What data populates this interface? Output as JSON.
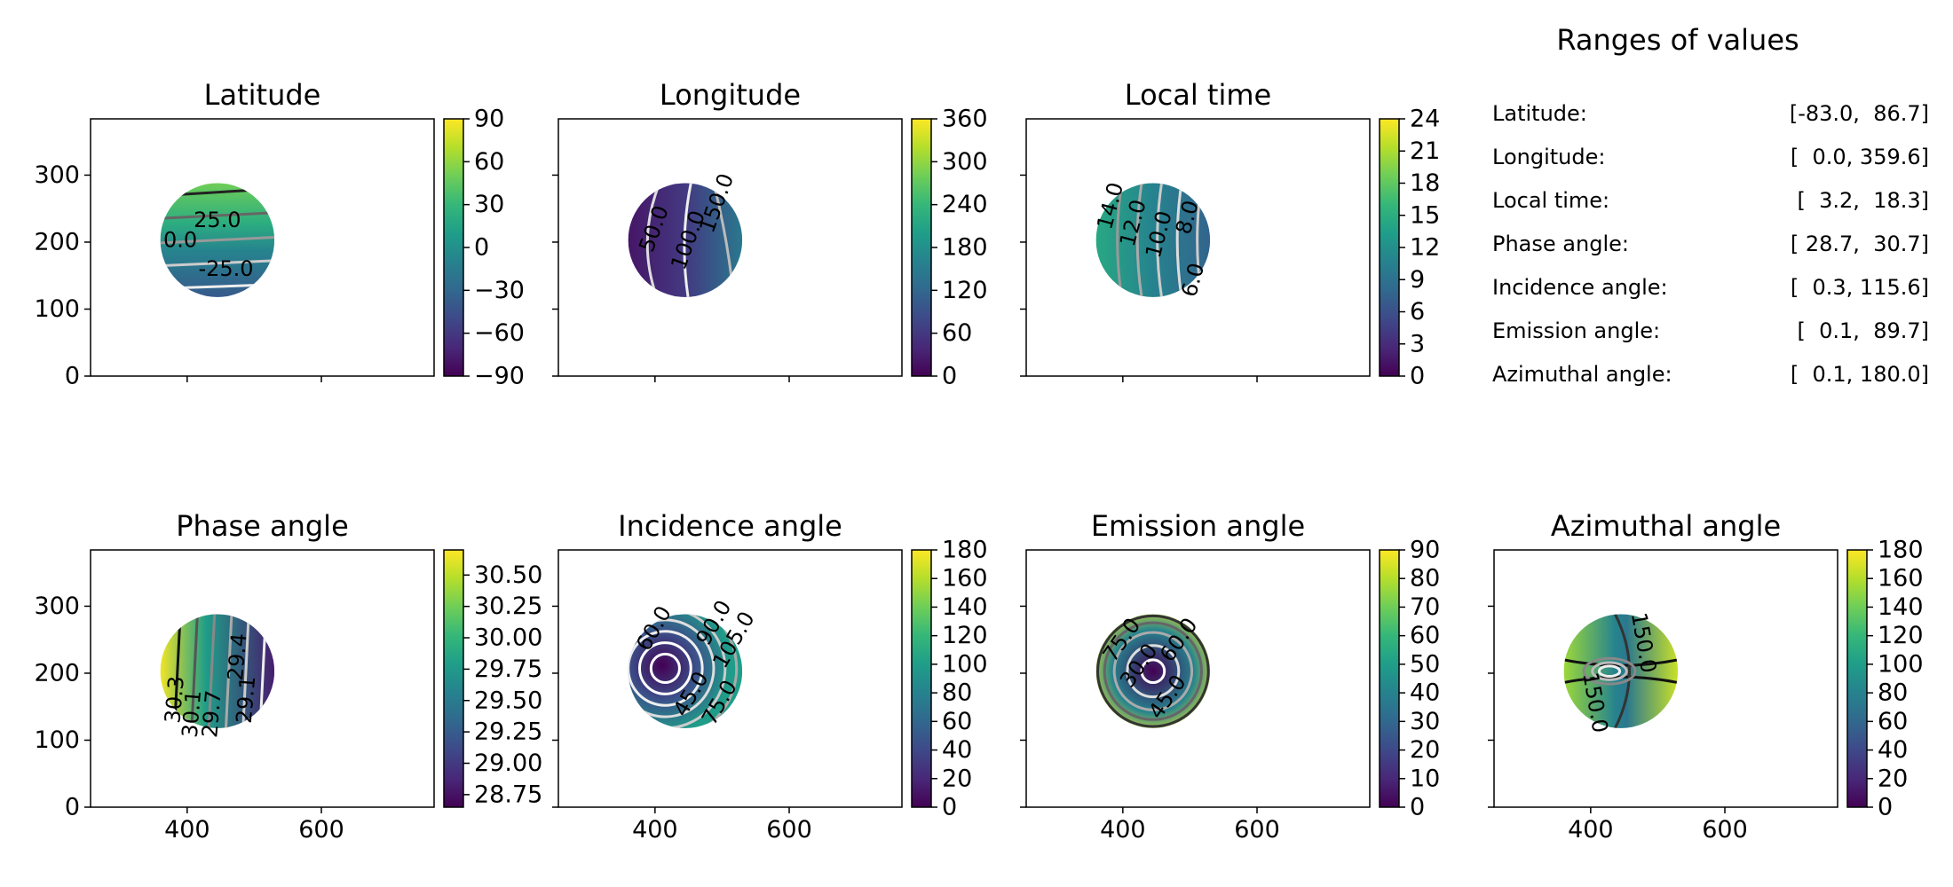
{
  "ranges_panel": {
    "title": "Ranges of values",
    "rows": [
      {
        "name": "Latitude:",
        "range": "[-83.0,  86.7]"
      },
      {
        "name": "Longitude:",
        "range": "[  0.0, 359.6]"
      },
      {
        "name": "Local time:",
        "range": "[  3.2,  18.3]"
      },
      {
        "name": "Phase angle:",
        "range": "[ 28.7,  30.7]"
      },
      {
        "name": "Incidence angle:",
        "range": "[  0.3, 115.6]"
      },
      {
        "name": "Emission angle:",
        "range": "[  0.1,  89.7]"
      },
      {
        "name": "Azimuthal angle:",
        "range": "[  0.1, 180.0]"
      }
    ]
  },
  "chart_data": [
    {
      "type": "heatmap",
      "title": "Latitude",
      "xlim": [
        256,
        768
      ],
      "ylim": [
        0,
        384
      ],
      "xticks": [
        "400",
        "600"
      ],
      "yticks": [
        "0",
        "100",
        "200",
        "300"
      ],
      "show_x_labels": false,
      "show_y_labels": true,
      "colormap": "viridis",
      "colorbar": {
        "min": -90,
        "max": 90,
        "ticks": [
          "90",
          "60",
          "30",
          "0",
          "−30",
          "−60",
          "−90"
        ],
        "tick_values": [
          90,
          60,
          30,
          0,
          -30,
          -60,
          -90
        ]
      },
      "disk": {
        "cx": 445,
        "cy": 203,
        "r": 85,
        "min": -83.0,
        "max": 86.7
      },
      "contour_labels": [
        "25.0",
        "0.0",
        "-25.0"
      ]
    },
    {
      "type": "heatmap",
      "title": "Longitude",
      "xlim": [
        256,
        768
      ],
      "ylim": [
        0,
        384
      ],
      "xticks": [
        "400",
        "600"
      ],
      "yticks": [
        "0",
        "100",
        "200",
        "300"
      ],
      "show_x_labels": false,
      "show_y_labels": false,
      "colormap": "viridis",
      "colorbar": {
        "min": 0,
        "max": 360,
        "ticks": [
          "360",
          "300",
          "240",
          "180",
          "120",
          "60",
          "0"
        ],
        "tick_values": [
          360,
          300,
          240,
          180,
          120,
          60,
          0
        ]
      },
      "disk": {
        "cx": 445,
        "cy": 203,
        "r": 85,
        "min": 0.0,
        "max": 359.6
      },
      "contour_labels": [
        "50.0",
        "100.0",
        "150.0"
      ]
    },
    {
      "type": "heatmap",
      "title": "Local time",
      "xlim": [
        256,
        768
      ],
      "ylim": [
        0,
        384
      ],
      "xticks": [
        "400",
        "600"
      ],
      "yticks": [
        "0",
        "100",
        "200",
        "300"
      ],
      "show_x_labels": false,
      "show_y_labels": false,
      "colormap": "viridis",
      "colorbar": {
        "min": 0,
        "max": 24,
        "ticks": [
          "24",
          "21",
          "18",
          "15",
          "12",
          "9",
          "6",
          "3",
          "0"
        ],
        "tick_values": [
          24,
          21,
          18,
          15,
          12,
          9,
          6,
          3,
          0
        ]
      },
      "disk": {
        "cx": 445,
        "cy": 203,
        "r": 85,
        "min": 3.2,
        "max": 18.3
      },
      "contour_labels": [
        "14.0",
        "12.0",
        "10.0",
        "8.0",
        "6.0"
      ]
    },
    {
      "type": "heatmap",
      "title": "Phase angle",
      "xlim": [
        256,
        768
      ],
      "ylim": [
        0,
        384
      ],
      "xticks": [
        "400",
        "600"
      ],
      "yticks": [
        "0",
        "100",
        "200",
        "300"
      ],
      "show_x_labels": true,
      "show_y_labels": true,
      "colormap": "viridis",
      "colorbar": {
        "min": 28.65,
        "max": 30.7,
        "ticks": [
          "30.50",
          "30.25",
          "30.00",
          "29.75",
          "29.50",
          "29.25",
          "29.00",
          "28.75"
        ],
        "tick_values": [
          30.5,
          30.25,
          30.0,
          29.75,
          29.5,
          29.25,
          29.0,
          28.75
        ]
      },
      "disk": {
        "cx": 445,
        "cy": 203,
        "r": 85,
        "min": 28.7,
        "max": 30.7
      },
      "contour_labels": [
        "30.3",
        "30.1",
        "29.7",
        "29.4",
        "29.1"
      ]
    },
    {
      "type": "heatmap",
      "title": "Incidence angle",
      "xlim": [
        256,
        768
      ],
      "ylim": [
        0,
        384
      ],
      "xticks": [
        "400",
        "600"
      ],
      "yticks": [
        "0",
        "100",
        "200",
        "300"
      ],
      "show_x_labels": true,
      "show_y_labels": false,
      "colormap": "viridis",
      "colorbar": {
        "min": 0,
        "max": 180,
        "ticks": [
          "180",
          "160",
          "140",
          "120",
          "100",
          "80",
          "60",
          "40",
          "20",
          "0"
        ],
        "tick_values": [
          180,
          160,
          140,
          120,
          100,
          80,
          60,
          40,
          20,
          0
        ]
      },
      "disk": {
        "cx": 445,
        "cy": 203,
        "r": 85,
        "min": 0.3,
        "max": 115.6
      },
      "contour_labels": [
        "60.0",
        "90.0",
        "105.0",
        "45.0",
        "75.0"
      ]
    },
    {
      "type": "heatmap",
      "title": "Emission angle",
      "xlim": [
        256,
        768
      ],
      "ylim": [
        0,
        384
      ],
      "xticks": [
        "400",
        "600"
      ],
      "yticks": [
        "0",
        "100",
        "200",
        "300"
      ],
      "show_x_labels": true,
      "show_y_labels": false,
      "colormap": "viridis",
      "colorbar": {
        "min": 0,
        "max": 90,
        "ticks": [
          "90",
          "80",
          "70",
          "60",
          "50",
          "40",
          "30",
          "20",
          "10",
          "0"
        ],
        "tick_values": [
          90,
          80,
          70,
          60,
          50,
          40,
          30,
          20,
          10,
          0
        ]
      },
      "disk": {
        "cx": 445,
        "cy": 203,
        "r": 85,
        "min": 0.1,
        "max": 89.7
      },
      "contour_labels": [
        "75.0",
        "60.0",
        "30.0",
        "45.0"
      ]
    },
    {
      "type": "heatmap",
      "title": "Azimuthal angle",
      "xlim": [
        256,
        768
      ],
      "ylim": [
        0,
        384
      ],
      "xticks": [
        "400",
        "600"
      ],
      "yticks": [
        "0",
        "100",
        "200",
        "300"
      ],
      "show_x_labels": true,
      "show_y_labels": false,
      "colormap": "viridis",
      "colorbar": {
        "min": 0,
        "max": 180,
        "ticks": [
          "180",
          "160",
          "140",
          "120",
          "100",
          "80",
          "60",
          "40",
          "20",
          "0"
        ],
        "tick_values": [
          180,
          160,
          140,
          120,
          100,
          80,
          60,
          40,
          20,
          0
        ]
      },
      "disk": {
        "cx": 445,
        "cy": 203,
        "r": 85,
        "min": 0.1,
        "max": 180.0
      },
      "contour_labels": [
        "150.0",
        "150.0"
      ]
    }
  ]
}
